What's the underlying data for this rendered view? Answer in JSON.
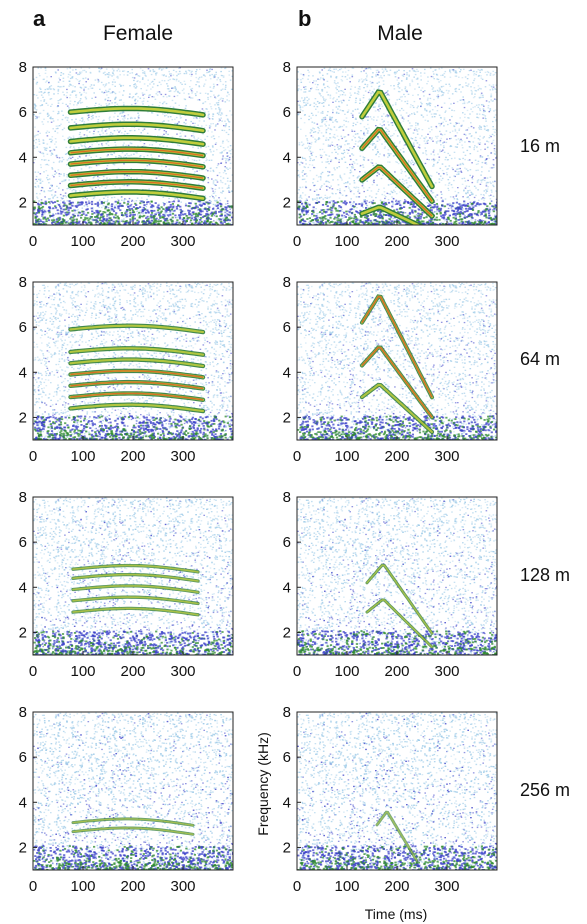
{
  "figure": {
    "panel_labels": [
      "a",
      "b"
    ],
    "column_titles": [
      "Female",
      "Male"
    ],
    "row_labels": [
      "16 m",
      "64 m",
      "128 m",
      "256 m"
    ],
    "xlabel": "Time (ms)",
    "ylabel": "Frequency (kHz)"
  },
  "colors": {
    "noise_light": "#9ecbe8",
    "noise_dark": "#3a3fc8",
    "floor_green": "#2e8b2e",
    "harmonic_green": "#2f7d3a",
    "harmonic_yellow": "#c8d23c",
    "harmonic_red": "#e05a1e"
  },
  "chart_data": [
    {
      "type": "heatmap",
      "column": "Female",
      "distance": "16 m",
      "xlim": [
        0,
        400
      ],
      "ylim": [
        1,
        8
      ],
      "xticks": [
        "0",
        "100",
        "200",
        "300"
      ],
      "yticks": [
        "2",
        "4",
        "6",
        "8"
      ],
      "noise": 0.9,
      "intensity": 1.0,
      "call": {
        "t_start": 75,
        "t_end": 340,
        "harmonics_khz": [
          2.3,
          2.75,
          3.2,
          3.7,
          4.2,
          4.7,
          5.3,
          6.0
        ]
      }
    },
    {
      "type": "heatmap",
      "column": "Male",
      "distance": "16 m",
      "xlim": [
        0,
        400
      ],
      "ylim": [
        1,
        8
      ],
      "xticks": [
        "0",
        "100",
        "200",
        "300"
      ],
      "yticks": [
        "2",
        "4",
        "6",
        "8"
      ],
      "noise": 0.9,
      "intensity": 1.0,
      "call": {
        "t_start": 130,
        "t_end": 270,
        "sweep": true,
        "harmonics_khz": [
          1.5,
          3.0,
          4.4,
          5.8
        ]
      }
    },
    {
      "type": "heatmap",
      "column": "Female",
      "distance": "64 m",
      "xlim": [
        0,
        400
      ],
      "ylim": [
        1,
        8
      ],
      "xticks": [
        "0",
        "100",
        "200",
        "300"
      ],
      "yticks": [
        "2",
        "4",
        "6",
        "8"
      ],
      "noise": 1.0,
      "intensity": 0.8,
      "call": {
        "t_start": 75,
        "t_end": 340,
        "harmonics_khz": [
          2.4,
          2.9,
          3.4,
          3.9,
          4.4,
          4.9,
          5.9
        ]
      }
    },
    {
      "type": "heatmap",
      "column": "Male",
      "distance": "64 m",
      "xlim": [
        0,
        400
      ],
      "ylim": [
        1,
        8
      ],
      "xticks": [
        "0",
        "100",
        "200",
        "300"
      ],
      "yticks": [
        "2",
        "4",
        "6",
        "8"
      ],
      "noise": 1.0,
      "intensity": 0.75,
      "call": {
        "t_start": 130,
        "t_end": 270,
        "sweep": true,
        "harmonics_khz": [
          2.9,
          4.3,
          6.2
        ]
      }
    },
    {
      "type": "heatmap",
      "column": "Female",
      "distance": "128 m",
      "xlim": [
        0,
        400
      ],
      "ylim": [
        1,
        8
      ],
      "xticks": [
        "0",
        "100",
        "200",
        "300"
      ],
      "yticks": [
        "2",
        "4",
        "6",
        "8"
      ],
      "noise": 1.15,
      "intensity": 0.6,
      "call": {
        "t_start": 80,
        "t_end": 330,
        "harmonics_khz": [
          2.9,
          3.4,
          3.9,
          4.4,
          4.8
        ]
      }
    },
    {
      "type": "heatmap",
      "column": "Male",
      "distance": "128 m",
      "xlim": [
        0,
        400
      ],
      "ylim": [
        1,
        8
      ],
      "xticks": [
        "0",
        "100",
        "200",
        "300"
      ],
      "yticks": [
        "2",
        "4",
        "6",
        "8"
      ],
      "noise": 1.15,
      "intensity": 0.55,
      "call": {
        "t_start": 140,
        "t_end": 270,
        "sweep": true,
        "harmonics_khz": [
          2.9,
          4.2
        ]
      }
    },
    {
      "type": "heatmap",
      "column": "Female",
      "distance": "256 m",
      "xlim": [
        0,
        400
      ],
      "ylim": [
        1,
        8
      ],
      "xticks": [
        "0",
        "100",
        "200",
        "300"
      ],
      "yticks": [
        "2",
        "4",
        "6",
        "8"
      ],
      "noise": 1.3,
      "intensity": 0.45,
      "call": {
        "t_start": 80,
        "t_end": 320,
        "harmonics_khz": [
          2.7,
          3.1
        ]
      }
    },
    {
      "type": "heatmap",
      "column": "Male",
      "distance": "256 m",
      "xlim": [
        0,
        400
      ],
      "ylim": [
        1,
        8
      ],
      "xticks": [
        "0",
        "100",
        "200",
        "300"
      ],
      "yticks": [
        "2",
        "4",
        "6",
        "8"
      ],
      "noise": 1.3,
      "intensity": 0.3,
      "call": {
        "t_start": 160,
        "t_end": 240,
        "sweep": true,
        "harmonics_khz": [
          3.0
        ]
      }
    }
  ]
}
